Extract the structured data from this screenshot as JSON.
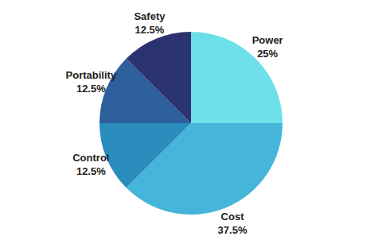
{
  "chart_data": {
    "type": "pie",
    "categories": [
      "Power",
      "Cost",
      "Control",
      "Portability",
      "Safety"
    ],
    "values": [
      25,
      37.5,
      12.5,
      12.5,
      12.5
    ],
    "value_labels": [
      "25%",
      "37.5%",
      "12.5%",
      "12.5%",
      "12.5%"
    ],
    "colors": [
      "#6ddfe8",
      "#45b6d9",
      "#2a8bbd",
      "#2c5f9c",
      "#2b336f"
    ],
    "data_labels": true
  }
}
